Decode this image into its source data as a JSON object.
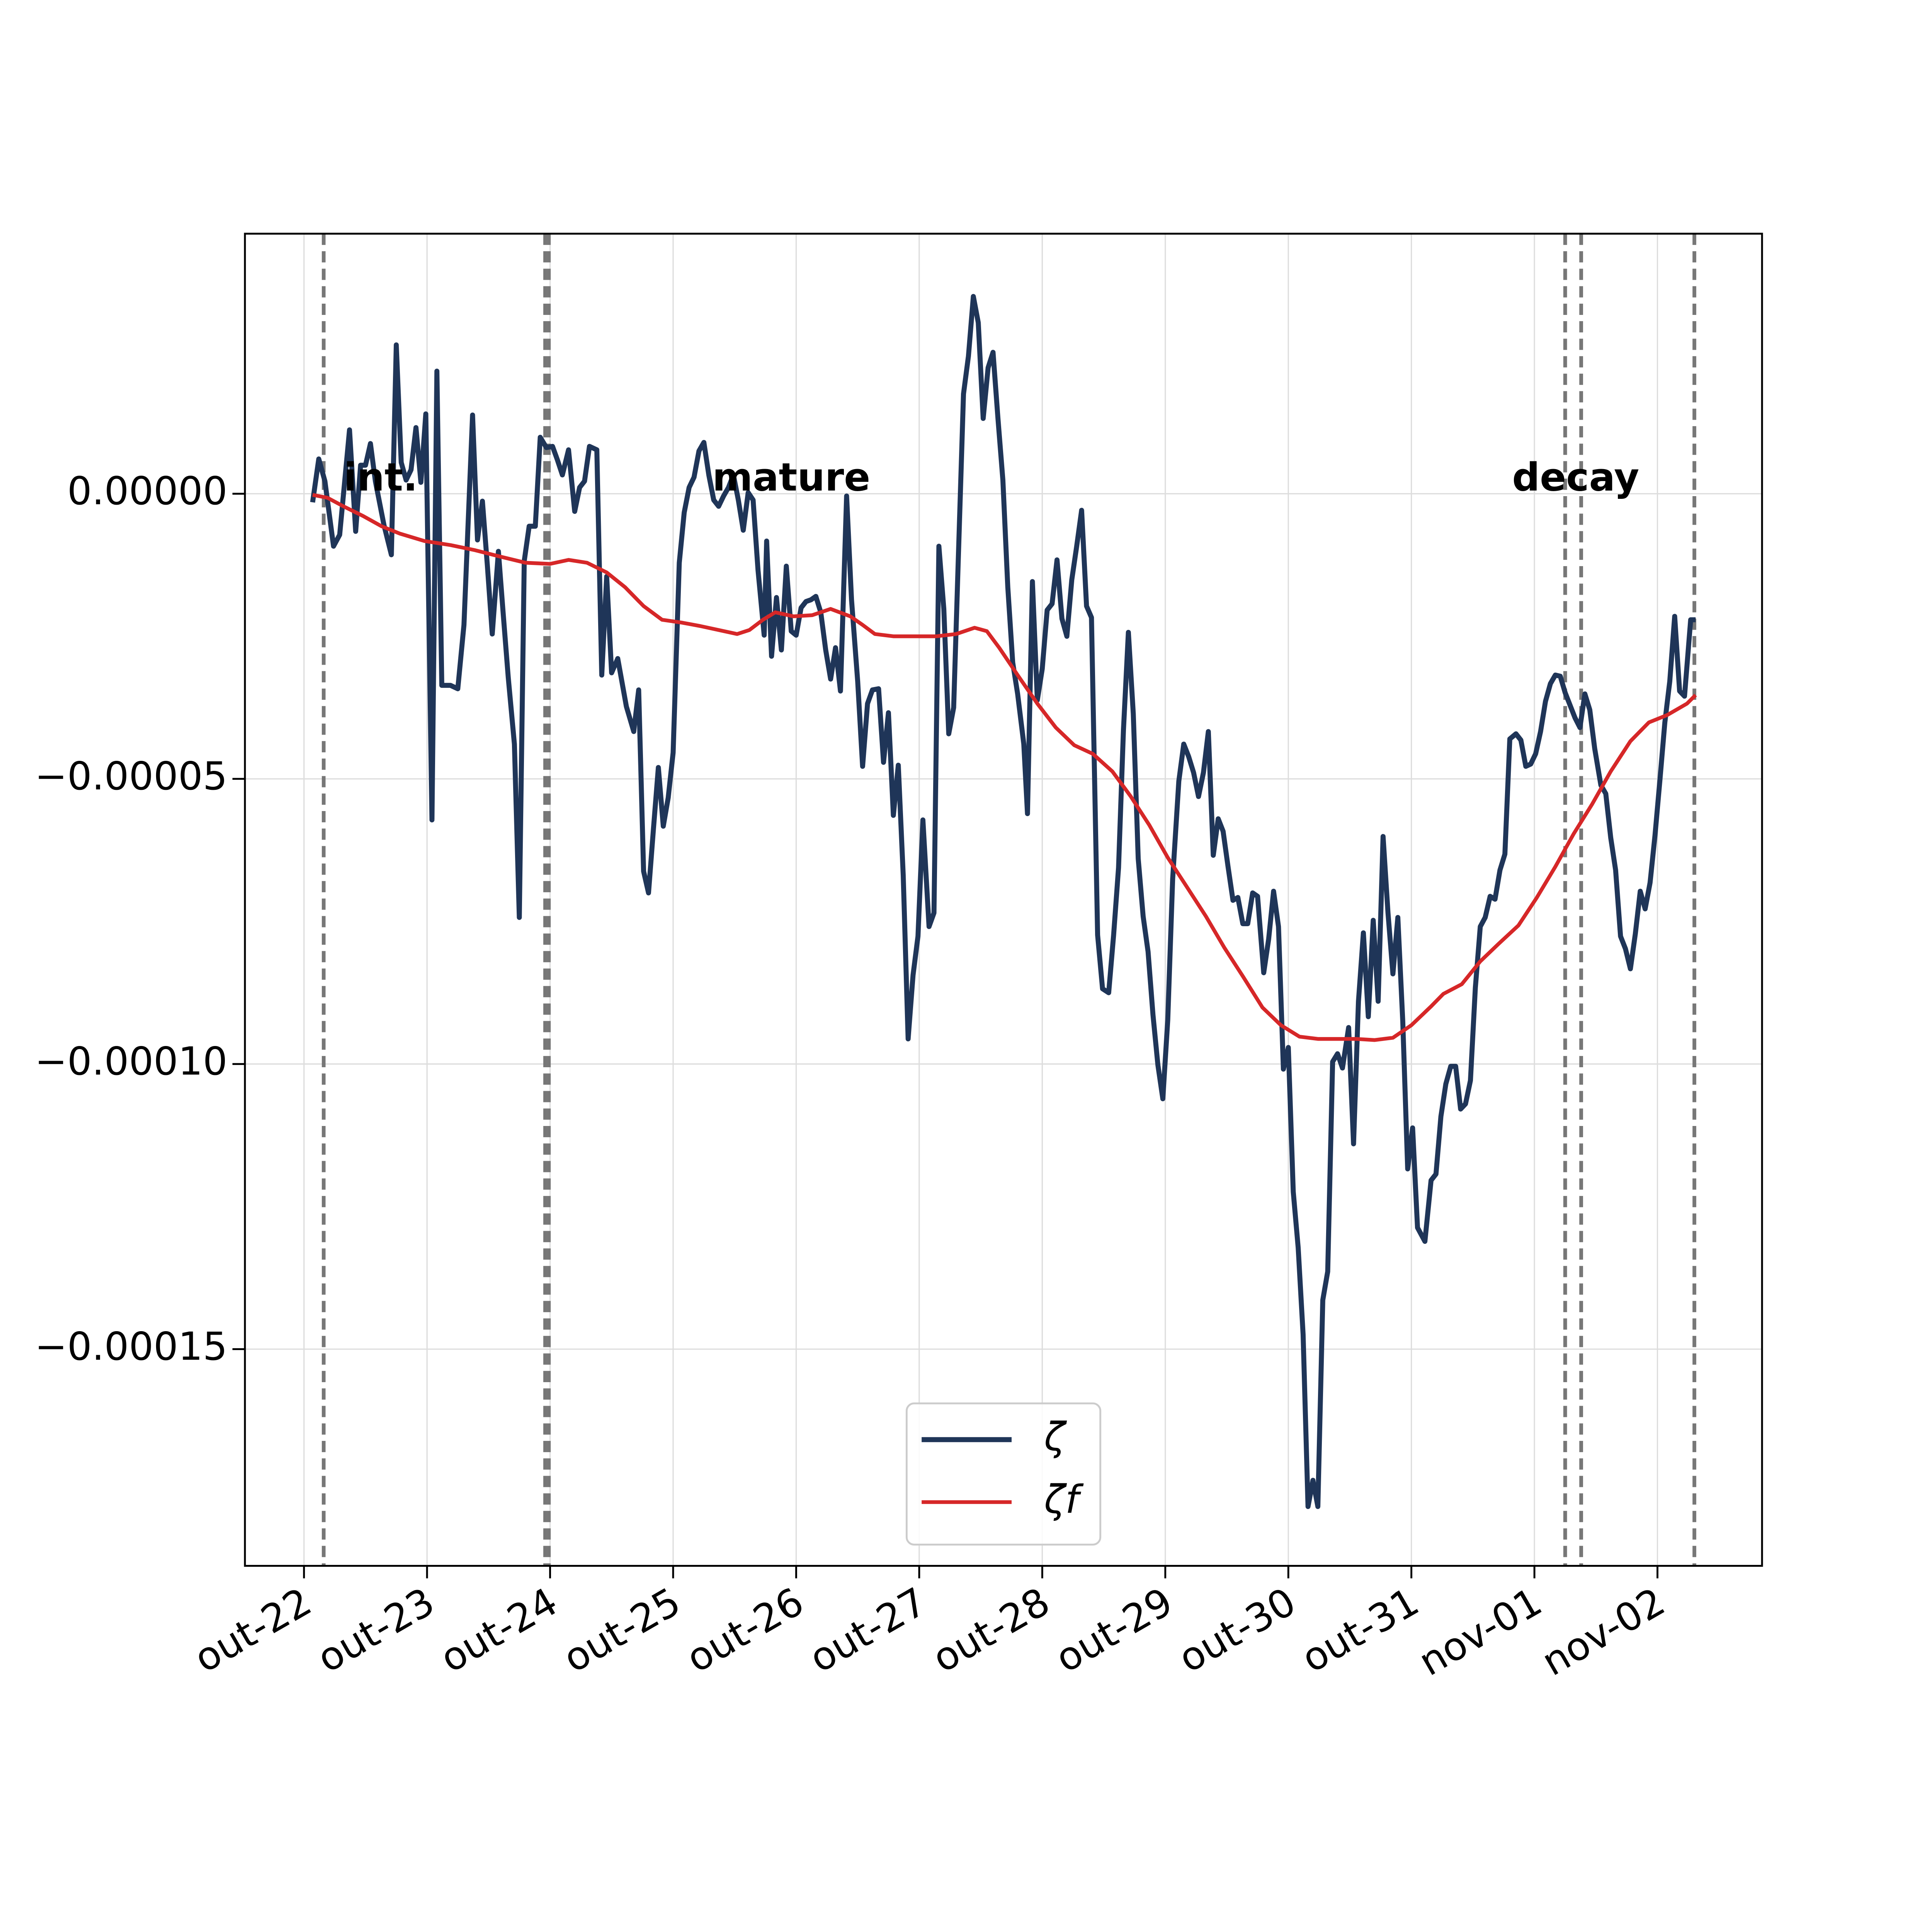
{
  "chart_data": {
    "type": "line",
    "xlim": [
      -0.48,
      11.85
    ],
    "ylim": [
      -0.000188,
      4.56e-05
    ],
    "xticks": [
      {
        "value": 0,
        "label": "out-22"
      },
      {
        "value": 1,
        "label": "out-23"
      },
      {
        "value": 2,
        "label": "out-24"
      },
      {
        "value": 3,
        "label": "out-25"
      },
      {
        "value": 4,
        "label": "out-26"
      },
      {
        "value": 5,
        "label": "out-27"
      },
      {
        "value": 6,
        "label": "out-28"
      },
      {
        "value": 7,
        "label": "out-29"
      },
      {
        "value": 8,
        "label": "out-30"
      },
      {
        "value": 9,
        "label": "out-31"
      },
      {
        "value": 10,
        "label": "nov-01"
      },
      {
        "value": 11,
        "label": "nov-02"
      }
    ],
    "yticks": [
      {
        "value": 0,
        "label": "0.00000"
      },
      {
        "value": -5e-05,
        "label": "−0.00005"
      },
      {
        "value": -0.0001,
        "label": "−0.00010"
      },
      {
        "value": -0.00015,
        "label": "−0.00015"
      }
    ],
    "grid": true,
    "legend": "lower center",
    "vlines": [
      0.16,
      1.96,
      1.99,
      10.25,
      10.38,
      11.3
    ],
    "annotations": [
      "int.",
      "mature",
      "decay"
    ],
    "series": [
      {
        "name": "ζ",
        "color": "#1f3558",
        "x": [
          0.07,
          0.12,
          0.17,
          0.24,
          0.29,
          0.37,
          0.42,
          0.46,
          0.5,
          0.54,
          0.58,
          0.65,
          0.71,
          0.75,
          0.79,
          0.83,
          0.87,
          0.91,
          0.95,
          0.99,
          1.04,
          1.08,
          1.12,
          1.19,
          1.25,
          1.3,
          1.37,
          1.41,
          1.45,
          1.49,
          1.53,
          1.58,
          1.62,
          1.66,
          1.71,
          1.75,
          1.79,
          1.83,
          1.88,
          1.92,
          1.97,
          2.02,
          2.06,
          2.1,
          2.15,
          2.2,
          2.24,
          2.28,
          2.32,
          2.38,
          2.42,
          2.46,
          2.5,
          2.55,
          2.62,
          2.68,
          2.72,
          2.76,
          2.8,
          2.84,
          2.88,
          2.92,
          2.96,
          3.0,
          3.05,
          3.09,
          3.13,
          3.17,
          3.21,
          3.25,
          3.29,
          3.33,
          3.37,
          3.41,
          3.45,
          3.49,
          3.53,
          3.57,
          3.61,
          3.65,
          3.69,
          3.74,
          3.76,
          3.8,
          3.84,
          3.88,
          3.92,
          3.96,
          4.0,
          4.04,
          4.08,
          4.12,
          4.16,
          4.2,
          4.24,
          4.28,
          4.32,
          4.36,
          4.41,
          4.45,
          4.5,
          4.54,
          4.58,
          4.62,
          4.67,
          4.71,
          4.75,
          4.79,
          4.83,
          4.87,
          4.91,
          4.95,
          4.99,
          5.03,
          5.08,
          5.12,
          5.16,
          5.2,
          5.24,
          5.28,
          5.32,
          5.36,
          5.4,
          5.44,
          5.48,
          5.52,
          5.56,
          5.6,
          5.64,
          5.68,
          5.72,
          5.76,
          5.8,
          5.85,
          5.88,
          5.92,
          5.96,
          6.0,
          6.04,
          6.08,
          6.12,
          6.16,
          6.2,
          6.24,
          6.28,
          6.32,
          6.36,
          6.4,
          6.45,
          6.49,
          6.54,
          6.58,
          6.62,
          6.66,
          6.7,
          6.74,
          6.78,
          6.82,
          6.86,
          6.9,
          6.94,
          6.98,
          7.02,
          7.06,
          7.11,
          7.15,
          7.19,
          7.23,
          7.27,
          7.31,
          7.35,
          7.39,
          7.43,
          7.47,
          7.51,
          7.55,
          7.59,
          7.63,
          7.67,
          7.71,
          7.75,
          7.8,
          7.84,
          7.88,
          7.92,
          7.96,
          8.0,
          8.04,
          8.08,
          8.12,
          8.16,
          8.2,
          8.24,
          8.28,
          8.32,
          8.36,
          8.4,
          8.44,
          8.49,
          8.53,
          8.57,
          8.61,
          8.65,
          8.69,
          8.73,
          8.77,
          8.81,
          8.85,
          8.89,
          8.93,
          8.97,
          9.01,
          9.05,
          9.11,
          9.16,
          9.2,
          9.24,
          9.28,
          9.32,
          9.36,
          9.4,
          9.44,
          9.48,
          9.52,
          9.56,
          9.6,
          9.64,
          9.68,
          9.72,
          9.76,
          9.8,
          9.85,
          9.89,
          9.93,
          9.97,
          10.01,
          10.05,
          10.09,
          10.13,
          10.17,
          10.21,
          10.25,
          10.29,
          10.33,
          10.37,
          10.41,
          10.45,
          10.49,
          10.54,
          10.58,
          10.62,
          10.66,
          10.7,
          10.74,
          10.78,
          10.82,
          10.86,
          10.9,
          10.94,
          10.98,
          11.02,
          11.06,
          11.1,
          11.14,
          11.18,
          11.22,
          11.27,
          11.31
        ],
        "values": [
          -1.5e-06,
          6.1e-06,
          2.2e-06,
          -9.2e-06,
          -7.2e-06,
          1.12e-05,
          -6.6e-06,
          5e-06,
          5e-06,
          8.8e-06,
          2.2e-06,
          -5.5e-06,
          -1.07e-05,
          2.61e-05,
          5.5e-06,
          2.4e-06,
          4.2e-06,
          1.16e-05,
          2e-06,
          1.4e-05,
          -5.72e-05,
          2.15e-05,
          -3.36e-05,
          -3.36e-05,
          -3.42e-05,
          -2.3e-05,
          1.38e-05,
          -8.1e-06,
          -1.3e-06,
          -1.25e-05,
          -2.46e-05,
          -1.01e-05,
          -2.13e-05,
          -3.22e-05,
          -4.39e-05,
          -7.43e-05,
          -1.18e-05,
          -5.7e-06,
          -5.7e-06,
          9.9e-06,
          8.1e-06,
          8.3e-06,
          5.9e-06,
          3.3e-06,
          7.7e-06,
          -3.1e-06,
          1.1e-06,
          2.2e-06,
          8.3e-06,
          7.7e-06,
          -3.18e-05,
          -1.45e-05,
          -3.14e-05,
          -2.89e-05,
          -3.73e-05,
          -4.17e-05,
          -3.44e-05,
          -6.62e-05,
          -7e-05,
          -5.88e-05,
          -4.8e-05,
          -5.83e-05,
          -5.33e-05,
          -4.54e-05,
          -1.21e-05,
          -3.3e-06,
          1.1e-06,
          2.9e-06,
          7.5e-06,
          9e-06,
          3.3e-06,
          -1.1e-06,
          -2.2e-06,
          -4e-07,
          1.1e-06,
          3.3e-06,
          -1.1e-06,
          -6.4e-06,
          2e-07,
          -1.1e-06,
          -1.34e-05,
          -2.48e-05,
          -8.3e-06,
          -2.85e-05,
          -1.82e-05,
          -2.74e-05,
          -1.27e-05,
          -2.41e-05,
          -2.48e-05,
          -2e-05,
          -1.89e-05,
          -1.86e-05,
          -1.8e-05,
          -2.08e-05,
          -2.74e-05,
          -3.25e-05,
          -2.7e-05,
          -3.46e-05,
          -4e-07,
          -1.86e-05,
          -3.29e-05,
          -4.78e-05,
          -3.68e-05,
          -3.44e-05,
          -3.42e-05,
          -4.71e-05,
          -3.84e-05,
          -5.64e-05,
          -4.76e-05,
          -6.69e-05,
          -9.56e-05,
          -8.44e-05,
          -7.76e-05,
          -5.72e-05,
          -7.59e-05,
          -7.35e-05,
          -9.2e-06,
          -2.02e-05,
          -4.21e-05,
          -3.75e-05,
          -9.9e-06,
          1.75e-05,
          2.41e-05,
          3.46e-05,
          3e-05,
          1.32e-05,
          2.21e-05,
          2.48e-05,
          1.32e-05,
          2.4e-06,
          -1.64e-05,
          -2.96e-05,
          -3.51e-05,
          -4.39e-05,
          -5.61e-05,
          -1.54e-05,
          -3.62e-05,
          -3.07e-05,
          -2.04e-05,
          -1.93e-05,
          -1.16e-05,
          -2.19e-05,
          -2.5e-05,
          -1.51e-05,
          -9.2e-06,
          -2.9e-06,
          -1.97e-05,
          -2.17e-05,
          -7.74e-05,
          -8.68e-05,
          -8.75e-05,
          -7.74e-05,
          -6.56e-05,
          -4.14e-05,
          -2.43e-05,
          -3.86e-05,
          -6.4e-05,
          -7.41e-05,
          -8.03e-05,
          -9.14e-05,
          -0.0001002,
          -0.0001061,
          -9.23e-05,
          -6.75e-05,
          -5.04e-05,
          -4.39e-05,
          -4.61e-05,
          -4.89e-05,
          -5.31e-05,
          -4.89e-05,
          -4.17e-05,
          -6.34e-05,
          -5.7e-05,
          -5.92e-05,
          -6.54e-05,
          -7.13e-05,
          -7.08e-05,
          -7.54e-05,
          -7.54e-05,
          -7e-05,
          -7.06e-05,
          -8.4e-05,
          -7.81e-05,
          -6.97e-05,
          -7.59e-05,
          -0.0001009,
          -9.71e-05,
          -0.0001224,
          -0.0001322,
          -0.0001474,
          -0.0001776,
          -0.000173,
          -0.0001776,
          -0.0001414,
          -0.0001364,
          -9.96e-05,
          -9.82e-05,
          -0.0001007,
          -9.36e-05,
          -0.000114,
          -8.9e-05,
          -7.7e-05,
          -9.17e-05,
          -7.48e-05,
          -8.9e-05,
          -6.01e-05,
          -7.35e-05,
          -8.42e-05,
          -7.43e-05,
          -9.25e-05,
          -0.0001184,
          -0.0001112,
          -0.0001287,
          -0.0001311,
          -0.0001204,
          -0.0001193,
          -0.0001092,
          -0.0001035,
          -0.0001004,
          -0.0001004,
          -0.0001079,
          -0.000107,
          -0.0001029,
          -8.66e-05,
          -7.59e-05,
          -7.43e-05,
          -7.06e-05,
          -7.11e-05,
          -6.6e-05,
          -6.32e-05,
          -4.3e-05,
          -4.21e-05,
          -4.32e-05,
          -4.78e-05,
          -4.74e-05,
          -4.56e-05,
          -4.17e-05,
          -3.64e-05,
          -3.33e-05,
          -3.18e-05,
          -3.2e-05,
          -3.49e-05,
          -3.71e-05,
          -3.93e-05,
          -4.1e-05,
          -3.51e-05,
          -3.79e-05,
          -4.47e-05,
          -5.11e-05,
          -5.26e-05,
          -6.03e-05,
          -6.6e-05,
          -7.76e-05,
          -7.98e-05,
          -8.33e-05,
          -7.72e-05,
          -6.97e-05,
          -7.28e-05,
          -6.82e-05,
          -5.99e-05,
          -5.02e-05,
          -4.01e-05,
          -3.29e-05,
          -2.15e-05,
          -3.46e-05,
          -3.55e-05,
          -2.21e-05,
          -2.21e-05
        ]
      },
      {
        "name": "ζf",
        "color": "#d62728",
        "x": [
          0.07,
          0.19,
          0.32,
          0.48,
          0.63,
          0.78,
          0.98,
          1.19,
          1.39,
          1.59,
          1.8,
          2.0,
          2.15,
          2.3,
          2.46,
          2.61,
          2.76,
          2.91,
          3.07,
          3.22,
          3.37,
          3.52,
          3.62,
          3.73,
          3.83,
          3.98,
          4.13,
          4.28,
          4.44,
          4.54,
          4.64,
          4.79,
          4.99,
          5.14,
          5.3,
          5.45,
          5.55,
          5.65,
          5.8,
          5.96,
          6.11,
          6.26,
          6.41,
          6.57,
          6.72,
          6.87,
          7.02,
          7.18,
          7.33,
          7.48,
          7.63,
          7.79,
          7.94,
          8.09,
          8.24,
          8.39,
          8.55,
          8.7,
          8.85,
          9.0,
          9.16,
          9.26,
          9.41,
          9.56,
          9.71,
          9.87,
          10.02,
          10.17,
          10.32,
          10.47,
          10.62,
          10.78,
          10.93,
          11.08,
          11.24,
          11.31
        ],
        "values": [
          -2e-07,
          -7e-07,
          -2.2e-06,
          -3.9e-06,
          -5.7e-06,
          -7e-06,
          -8.3e-06,
          -9e-06,
          -9.9e-06,
          -1.1e-05,
          -1.21e-05,
          -1.23e-05,
          -1.16e-05,
          -1.21e-05,
          -1.38e-05,
          -1.64e-05,
          -1.97e-05,
          -2.21e-05,
          -2.26e-05,
          -2.32e-05,
          -2.39e-05,
          -2.46e-05,
          -2.39e-05,
          -2.21e-05,
          -2.08e-05,
          -2.15e-05,
          -2.13e-05,
          -2.02e-05,
          -2.15e-05,
          -2.3e-05,
          -2.46e-05,
          -2.5e-05,
          -2.5e-05,
          -2.5e-05,
          -2.46e-05,
          -2.35e-05,
          -2.41e-05,
          -2.7e-05,
          -3.18e-05,
          -3.68e-05,
          -4.1e-05,
          -4.41e-05,
          -4.56e-05,
          -4.87e-05,
          -5.31e-05,
          -5.81e-05,
          -6.38e-05,
          -6.91e-05,
          -7.41e-05,
          -7.96e-05,
          -8.46e-05,
          -9.01e-05,
          -9.32e-05,
          -9.52e-05,
          -9.56e-05,
          -9.56e-05,
          -9.56e-05,
          -9.58e-05,
          -9.54e-05,
          -9.32e-05,
          -8.99e-05,
          -8.77e-05,
          -8.6e-05,
          -8.2e-05,
          -7.89e-05,
          -7.57e-05,
          -7.08e-05,
          -6.54e-05,
          -5.96e-05,
          -5.44e-05,
          -4.87e-05,
          -4.34e-05,
          -4.01e-05,
          -3.88e-05,
          -3.68e-05,
          -3.53e-05
        ]
      }
    ]
  }
}
